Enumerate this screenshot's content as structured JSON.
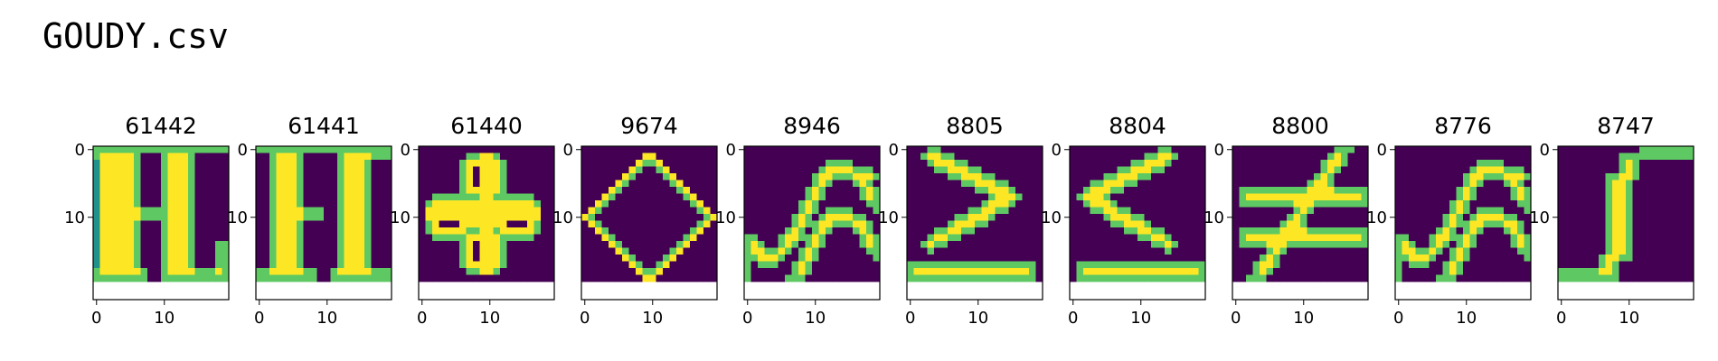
{
  "page": {
    "title": "GOUDY.csv"
  },
  "chart_data": {
    "type": "heatmap",
    "colormap": "viridis",
    "grid_size": [
      20,
      20
    ],
    "x_ticks": [
      "0",
      "10"
    ],
    "y_ticks": [
      "0",
      "10"
    ],
    "colors": {
      "background": "#440154",
      "teal": "#21918c",
      "green": "#5ec962",
      "yellow": "#fde725"
    },
    "panels": [
      {
        "label": "61442"
      },
      {
        "label": "61441"
      },
      {
        "label": "61440"
      },
      {
        "label": "9674"
      },
      {
        "label": "8946"
      },
      {
        "label": "8805"
      },
      {
        "label": "8804"
      },
      {
        "label": "8800"
      },
      {
        "label": "8776"
      },
      {
        "label": "8747"
      }
    ]
  }
}
